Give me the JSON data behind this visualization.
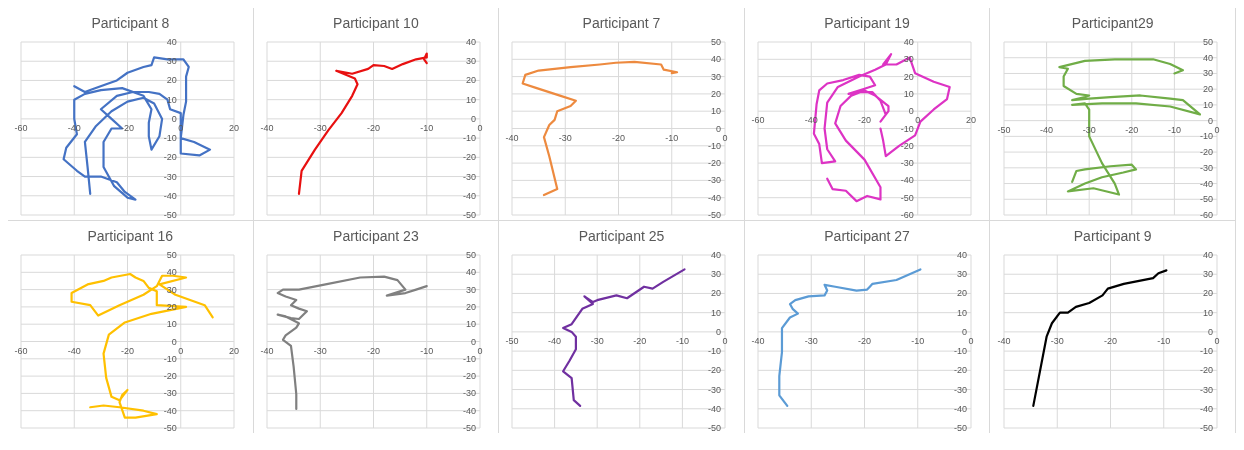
{
  "chart_data": [
    {
      "type": "line",
      "title": "Participant 8",
      "color": "#4472c4",
      "grid": true,
      "xlim": [
        -60,
        20
      ],
      "xticks": [
        -60,
        -40,
        -20,
        0,
        20
      ],
      "ylim": [
        -50,
        40
      ],
      "yticks": [
        -50,
        -40,
        -30,
        -20,
        -10,
        0,
        10,
        20,
        30,
        40
      ],
      "x": [
        -34,
        -35,
        -36,
        -32,
        -26,
        -20,
        -14,
        -10,
        -7,
        -8,
        -11,
        -12,
        -12,
        -11,
        -14,
        -22,
        -30,
        -36,
        -40,
        -40,
        -39,
        -43,
        -44,
        -39,
        -36,
        -30,
        -24,
        -21,
        -17,
        -20,
        -25,
        -29,
        -29,
        -26,
        -22,
        -26,
        -30,
        -24,
        -18,
        -12,
        -8,
        -5,
        -4,
        0,
        0,
        0,
        7,
        11,
        5,
        0,
        1,
        2,
        2,
        2,
        3,
        1,
        -5,
        -10,
        -11,
        -14,
        -20,
        -24,
        -28,
        -34,
        -36,
        -40
      ],
      "values": [
        -39,
        -25,
        -12,
        -4,
        4,
        9,
        11,
        8,
        0,
        -9,
        -16,
        -9,
        -2,
        5,
        12,
        16,
        15,
        13,
        10,
        0,
        -8,
        -15,
        -21,
        -27,
        -30,
        -30,
        -33,
        -38,
        -42,
        -41,
        -35,
        -25,
        -12,
        -5,
        -5,
        0,
        5,
        12,
        14,
        14,
        13,
        10,
        5,
        3,
        -8,
        -18,
        -19,
        -16,
        -12,
        -10,
        2,
        9,
        16,
        22,
        27,
        31,
        31,
        32,
        28,
        27,
        24,
        20,
        18,
        15,
        14,
        17
      ]
    },
    {
      "type": "line",
      "title": "Participant 10",
      "color": "#e81010",
      "grid": true,
      "xlim": [
        -40,
        0
      ],
      "xticks": [
        -40,
        -30,
        -20,
        -10,
        0
      ],
      "ylim": [
        -50,
        40
      ],
      "yticks": [
        -50,
        -40,
        -30,
        -20,
        -10,
        0,
        10,
        20,
        30,
        40
      ],
      "x": [
        -34,
        -33.5,
        -31,
        -28.5,
        -26,
        -24,
        -23,
        -23.5,
        -27,
        -24,
        -21,
        -20,
        -18,
        -16.5,
        -14.5,
        -12,
        -10,
        -10,
        -10.5,
        -10
      ],
      "values": [
        -39,
        -27,
        -16,
        -6,
        3,
        12,
        18,
        21,
        25,
        23.5,
        26,
        28,
        27.5,
        26,
        28.5,
        31,
        32,
        34,
        31,
        29
      ]
    },
    {
      "type": "line",
      "title": "Participant 7",
      "color": "#ed8a3f",
      "grid": true,
      "xlim": [
        -40,
        0
      ],
      "xticks": [
        -40,
        -30,
        -20,
        -10,
        0
      ],
      "ylim": [
        -50,
        50
      ],
      "yticks": [
        -50,
        -40,
        -30,
        -20,
        -10,
        0,
        10,
        20,
        30,
        40,
        50
      ],
      "x": [
        -34,
        -31.5,
        -33,
        -34,
        -33,
        -32,
        -31.5,
        -29,
        -28,
        -31,
        -35.5,
        -38,
        -37.5,
        -35,
        -29,
        -23.5,
        -20.5,
        -17,
        -12,
        -11.5,
        -9,
        -10
      ],
      "values": [
        -38.5,
        -35,
        -16,
        -5,
        2,
        5,
        10,
        13,
        16,
        19,
        23.5,
        26,
        31,
        33.5,
        35.5,
        37,
        38,
        38.5,
        37,
        34,
        32.5,
        32
      ]
    },
    {
      "type": "line",
      "title": "Participant 19",
      "color": "#dd33c4",
      "grid": true,
      "xlim": [
        -60,
        20
      ],
      "xticks": [
        -60,
        -40,
        -20,
        0,
        20
      ],
      "ylim": [
        -60,
        40
      ],
      "yticks": [
        -60,
        -50,
        -40,
        -30,
        -20,
        -10,
        0,
        10,
        20,
        30,
        40
      ],
      "x": [
        -34,
        -32,
        -27,
        -23,
        -19,
        -14,
        -14,
        -20,
        -27,
        -31,
        -29,
        -25,
        -20,
        -16,
        -11,
        -11,
        -14,
        -12,
        -14,
        -17,
        -22,
        -26,
        -20,
        -16,
        -18,
        -22,
        -28,
        -34,
        -37,
        -38,
        -39,
        -37,
        -36,
        -31,
        -34,
        -35,
        -34,
        -30,
        -22,
        -16,
        -12,
        -10,
        -13,
        -8,
        -3,
        -1,
        6,
        12,
        11,
        6,
        1,
        -1,
        -7,
        -12,
        -13,
        -14
      ],
      "values": [
        -39,
        -45,
        -46,
        -52,
        -49,
        -51,
        -44,
        -28,
        -17,
        -7,
        3,
        9,
        12,
        9,
        3,
        0,
        -6,
        -2,
        6,
        11,
        11,
        10,
        13,
        15,
        20,
        21,
        18,
        16,
        12,
        4,
        -13,
        -19,
        -30,
        -29,
        -22,
        -10,
        5,
        14,
        20,
        24,
        27,
        33,
        27,
        27,
        31,
        22,
        17,
        14,
        7,
        1,
        -6,
        -14,
        -20,
        -26,
        -17,
        -10
      ]
    },
    {
      "type": "line",
      "title": "Participant29",
      "color": "#70ad47",
      "grid": true,
      "xlim": [
        -50,
        0
      ],
      "xticks": [
        -50,
        -40,
        -30,
        -20,
        -10,
        0
      ],
      "ylim": [
        -60,
        50
      ],
      "yticks": [
        -60,
        -50,
        -40,
        -30,
        -20,
        -10,
        0,
        10,
        20,
        30,
        40,
        50
      ],
      "x": [
        -34,
        -33,
        -31,
        -25,
        -20,
        -19,
        -22,
        -27,
        -31,
        -35,
        -29,
        -23,
        -24,
        -27,
        -30,
        -30,
        -31,
        -34,
        -27,
        -19,
        -11,
        -4,
        -8,
        -11,
        -18,
        -25,
        -30,
        -34,
        -31,
        -30,
        -33,
        -36,
        -36,
        -35,
        -37,
        -31,
        -24,
        -15,
        -11,
        -8,
        -10
      ],
      "values": [
        -39,
        -32,
        -31,
        -29,
        -28,
        -31,
        -33,
        -36,
        -40,
        -45,
        -43,
        -47,
        -40,
        -27,
        -10,
        7,
        11,
        10,
        11,
        11,
        9,
        4,
        13,
        14,
        16,
        15,
        14,
        13,
        15,
        16,
        17,
        22,
        28,
        33,
        34,
        38,
        39,
        39,
        36,
        32,
        30
      ]
    },
    {
      "type": "line",
      "title": "Participant 16",
      "color": "#ffc000",
      "grid": true,
      "xlim": [
        -60,
        20
      ],
      "xticks": [
        -60,
        -40,
        -20,
        0,
        20
      ],
      "ylim": [
        -50,
        50
      ],
      "yticks": [
        -50,
        -40,
        -30,
        -20,
        -10,
        0,
        10,
        20,
        30,
        40,
        50
      ],
      "x": [
        -34,
        -29,
        -23,
        -14,
        -9,
        -17,
        -21,
        -23,
        -22,
        -20,
        -23,
        -26,
        -28,
        -29,
        -27,
        -21,
        -11,
        2,
        -9,
        -9,
        -12,
        -14,
        -17,
        -19,
        -26,
        -29,
        -35,
        -41,
        -41,
        -34,
        -31,
        -23,
        -14,
        -9,
        -7,
        -3,
        2,
        -8,
        -2,
        9,
        12
      ],
      "values": [
        -38,
        -37,
        -38,
        -40,
        -42,
        -44,
        -44,
        -35,
        -31,
        -28,
        -34,
        -32,
        -21,
        -7,
        4,
        11,
        16,
        20,
        21,
        29,
        31,
        35,
        37,
        39,
        37,
        35,
        33,
        28,
        23,
        21,
        15,
        21,
        27,
        32,
        38,
        38,
        37,
        33,
        27,
        21,
        14
      ]
    },
    {
      "type": "line",
      "title": "Participant 23",
      "color": "#808080",
      "grid": true,
      "xlim": [
        -40,
        0
      ],
      "xticks": [
        -40,
        -30,
        -20,
        -10,
        0
      ],
      "ylim": [
        -50,
        50
      ],
      "yticks": [
        -50,
        -40,
        -30,
        -20,
        -10,
        0,
        10,
        20,
        30,
        40,
        50
      ],
      "x": [
        -34.5,
        -34.5,
        -35,
        -35.5,
        -37,
        -36.5,
        -34.5,
        -34,
        -36.5,
        -38,
        -35.5,
        -34,
        -33,
        -32.5,
        -34,
        -35.5,
        -34.5,
        -36.5,
        -38,
        -37,
        -34,
        -29,
        -22.5,
        -18,
        -15.5,
        -14,
        -17.5,
        -14,
        -12,
        -10
      ],
      "values": [
        -39,
        -30.5,
        -14.5,
        -2.5,
        1,
        3.5,
        8,
        10.5,
        14.5,
        15.5,
        13.5,
        13,
        16,
        17.5,
        19,
        21,
        24,
        26,
        28,
        30,
        30,
        33,
        37,
        37.5,
        35.5,
        30,
        26.5,
        28,
        30,
        32
      ]
    },
    {
      "type": "line",
      "title": "Participant 25",
      "color": "#7030a0",
      "grid": true,
      "xlim": [
        -50,
        0
      ],
      "xticks": [
        -50,
        -40,
        -30,
        -20,
        -10,
        0
      ],
      "ylim": [
        -50,
        40
      ],
      "yticks": [
        -50,
        -40,
        -30,
        -20,
        -10,
        0,
        10,
        20,
        30,
        40
      ],
      "x": [
        -34,
        -35.5,
        -36,
        -38,
        -36.5,
        -35,
        -35,
        -36,
        -38,
        -36,
        -33.5,
        -31,
        -33,
        -31,
        -30,
        -25.5,
        -23,
        -19,
        -17,
        -14.5,
        -9.5
      ],
      "values": [
        -38.5,
        -35.5,
        -24,
        -20.5,
        -15,
        -9,
        -2.5,
        0,
        2,
        4,
        12,
        14.5,
        18.5,
        15.5,
        16.5,
        19,
        17.5,
        23.5,
        22.5,
        26,
        32.5
      ]
    },
    {
      "type": "line",
      "title": "Participant 27",
      "color": "#5b9bd5",
      "grid": true,
      "xlim": [
        -40,
        0
      ],
      "xticks": [
        -40,
        -30,
        -20,
        -10,
        0
      ],
      "ylim": [
        -50,
        40
      ],
      "yticks": [
        -50,
        -40,
        -30,
        -20,
        -10,
        0,
        10,
        20,
        30,
        40
      ],
      "x": [
        -34.5,
        -36,
        -36,
        -35.5,
        -35.5,
        -34,
        -32.5,
        -33.5,
        -34,
        -33,
        -30.5,
        -27.5,
        -27,
        -27.5,
        -25.5,
        -21.5,
        -19.5,
        -19,
        -18.5,
        -14,
        -9.5
      ],
      "values": [
        -38.5,
        -33,
        -23,
        -10.5,
        2,
        7.5,
        9.5,
        12,
        14.5,
        16.5,
        18.5,
        19,
        21.5,
        24.5,
        23.5,
        21.5,
        22,
        23.5,
        25,
        27,
        32.5
      ]
    },
    {
      "type": "line",
      "title": "Participant 9",
      "color": "#000000",
      "grid": true,
      "xlim": [
        -40,
        0
      ],
      "xticks": [
        -40,
        -30,
        -20,
        -10,
        0
      ],
      "ylim": [
        -50,
        40
      ],
      "yticks": [
        -50,
        -40,
        -30,
        -20,
        -10,
        0,
        10,
        20,
        30,
        40
      ],
      "x": [
        -34.5,
        -32,
        -31,
        -29.5,
        -28,
        -26.5,
        -24,
        -21.5,
        -20.5,
        -17.5,
        -12,
        -11,
        -9.5
      ],
      "values": [
        -38.5,
        -2.5,
        4.5,
        10,
        10,
        13,
        15,
        19,
        22.5,
        25,
        28,
        30.5,
        32
      ]
    }
  ]
}
